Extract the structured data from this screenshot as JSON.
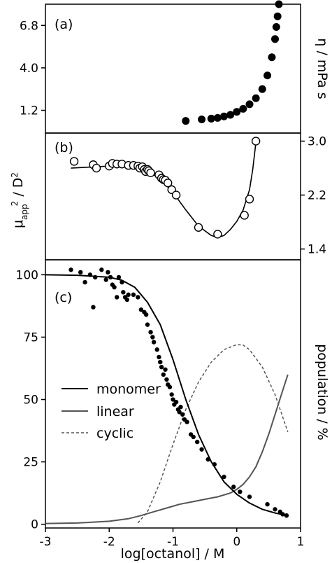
{
  "chart_data": [
    {
      "type": "scatter",
      "panel_label": "(a)",
      "ylabel": "η / mPa s",
      "ylabel_side": "right",
      "x_axis": "shared with panel (c)",
      "xlim": [
        -3,
        1
      ],
      "ylim": [
        -0.3,
        8.2
      ],
      "yticks": [
        1.2,
        4.0,
        6.8
      ],
      "ytick_labels": [
        "1.2",
        "4.0",
        "6.8"
      ],
      "series": [
        {
          "marker": "filled-circle",
          "color": "#000000",
          "x": [
            -0.8,
            -0.55,
            -0.4,
            -0.3,
            -0.2,
            -0.1,
            0.0,
            0.1,
            0.2,
            0.3,
            0.4,
            0.48,
            0.55,
            0.6,
            0.62,
            0.64,
            0.66
          ],
          "y": [
            0.5,
            0.6,
            0.65,
            0.7,
            0.8,
            0.9,
            1.1,
            1.3,
            1.6,
            2.0,
            2.6,
            3.5,
            4.7,
            5.9,
            6.7,
            7.4,
            8.2
          ]
        }
      ]
    },
    {
      "type": "scatter",
      "panel_label": "(b)",
      "ylabel": "μapp² / D²",
      "ylabel_side": "left",
      "yticks_side": "right",
      "xlim": [
        -3,
        1
      ],
      "ylim": [
        1.24,
        3.12
      ],
      "yticks": [
        1.4,
        2.2,
        3.0
      ],
      "ytick_labels": [
        "1.4",
        "2.2",
        "3.0"
      ],
      "series": [
        {
          "marker": "open-circle",
          "x": [
            -2.55,
            -2.25,
            -2.2,
            -2.0,
            -1.95,
            -1.88,
            -1.8,
            -1.7,
            -1.62,
            -1.55,
            -1.52,
            -1.48,
            -1.45,
            -1.43,
            -1.4,
            -1.38,
            -1.35,
            -1.22,
            -1.18,
            -1.15,
            -1.12,
            -1.08,
            -1.02,
            -0.95,
            -0.6,
            -0.3,
            0.12,
            0.2,
            0.3
          ],
          "y": [
            2.7,
            2.65,
            2.6,
            2.63,
            2.67,
            2.66,
            2.66,
            2.64,
            2.64,
            2.63,
            2.6,
            2.62,
            2.58,
            2.55,
            2.58,
            2.56,
            2.53,
            2.5,
            2.45,
            2.43,
            2.42,
            2.38,
            2.28,
            2.2,
            1.72,
            1.62,
            1.9,
            2.14,
            3.0
          ]
        },
        {
          "line": "solid",
          "color": "#000000",
          "x": [
            -2.6,
            -2.4,
            -2.2,
            -2.0,
            -1.8,
            -1.6,
            -1.4,
            -1.2,
            -1.0,
            -0.8,
            -0.6,
            -0.4,
            -0.3,
            -0.2,
            -0.1,
            0.0,
            0.1,
            0.2,
            0.25,
            0.3
          ],
          "y": [
            2.6,
            2.61,
            2.62,
            2.63,
            2.63,
            2.61,
            2.56,
            2.44,
            2.24,
            1.98,
            1.74,
            1.6,
            1.57,
            1.6,
            1.69,
            1.81,
            1.98,
            2.28,
            2.58,
            2.98
          ]
        }
      ]
    },
    {
      "type": "line",
      "panel_label": "(c)",
      "xlabel": "log[octanol] / M",
      "ylabel": "population / %",
      "ylabel_side": "right",
      "xlim": [
        -3,
        1
      ],
      "ylim": [
        -1.5,
        106
      ],
      "xticks": [
        -3,
        -2,
        -1,
        0,
        1
      ],
      "xtick_labels": [
        "-3",
        "-2",
        "-1",
        "0",
        "1"
      ],
      "yticks": [
        0,
        25,
        50,
        75,
        100
      ],
      "ytick_labels": [
        "0",
        "25",
        "50",
        "75",
        "100"
      ],
      "legend": {
        "position": "center-left",
        "entries": [
          "monomer",
          "linear",
          "cyclic"
        ]
      },
      "series": [
        {
          "name": "monomer",
          "line": "solid",
          "color": "#000000",
          "x": [
            -3.0,
            -2.5,
            -2.0,
            -1.8,
            -1.6,
            -1.4,
            -1.2,
            -1.0,
            -0.8,
            -0.6,
            -0.4,
            -0.2,
            0.0,
            0.2,
            0.4,
            0.6,
            0.8
          ],
          "y": [
            100,
            99.8,
            99,
            97.8,
            95,
            89,
            80,
            66,
            50,
            36,
            25,
            17,
            12,
            8.5,
            6,
            4.5,
            3.5
          ]
        },
        {
          "name": "linear",
          "line": "solid",
          "color": "#555555",
          "x": [
            -3.0,
            -2.5,
            -2.0,
            -1.7,
            -1.5,
            -1.3,
            -1.1,
            -0.9,
            -0.7,
            -0.5,
            -0.3,
            -0.1,
            0.0,
            0.1,
            0.2,
            0.3,
            0.4,
            0.5,
            0.6,
            0.7,
            0.8
          ],
          "y": [
            0.3,
            0.5,
            1.2,
            2.2,
            3.5,
            5,
            6.5,
            8,
            9,
            10,
            11,
            12.5,
            14,
            16,
            19,
            23,
            29,
            36,
            44,
            52,
            60
          ]
        },
        {
          "name": "cyclic",
          "line": "dashed",
          "color": "#555555",
          "x": [
            -1.55,
            -1.4,
            -1.2,
            -1.0,
            -0.8,
            -0.6,
            -0.4,
            -0.2,
            0.0,
            0.1,
            0.2,
            0.4,
            0.6,
            0.8
          ],
          "y": [
            0.5,
            5,
            17,
            32,
            46,
            57,
            65,
            70,
            72,
            71.8,
            70,
            63,
            52,
            37
          ]
        },
        {
          "name": "data",
          "marker": "filled-dot",
          "color": "#000000",
          "x": [
            -2.6,
            -2.45,
            -2.38,
            -2.3,
            -2.25,
            -2.22,
            -2.12,
            -2.05,
            -2.02,
            -1.98,
            -1.95,
            -1.92,
            -1.88,
            -1.85,
            -1.8,
            -1.78,
            -1.75,
            -1.72,
            -1.7,
            -1.62,
            -1.55,
            -1.5,
            -1.45,
            -1.42,
            -1.4,
            -1.35,
            -1.32,
            -1.3,
            -1.25,
            -1.22,
            -1.2,
            -1.18,
            -1.15,
            -1.12,
            -1.1,
            -1.08,
            -1.05,
            -1.02,
            -1.0,
            -0.98,
            -0.95,
            -0.92,
            -0.9,
            -0.88,
            -0.85,
            -0.82,
            -0.78,
            -0.72,
            -0.68,
            -0.62,
            -0.55,
            -0.45,
            -0.35,
            -0.2,
            -0.05,
            0.05,
            0.2,
            0.48,
            0.6,
            0.68,
            0.72,
            0.78
          ],
          "y": [
            102,
            101,
            97,
            100,
            87,
            99,
            102,
            98,
            101,
            99,
            96,
            95,
            91,
            99,
            97,
            93,
            91,
            90,
            92,
            92,
            91,
            86,
            85,
            84,
            80,
            77,
            75,
            73,
            70,
            67,
            65,
            63,
            60,
            62,
            58,
            56,
            55,
            52,
            50,
            48,
            49,
            46,
            45,
            47,
            44,
            42,
            41,
            36,
            35,
            33,
            30,
            26,
            24,
            19,
            15,
            13,
            11,
            8,
            6,
            5,
            4,
            3.5
          ]
        }
      ]
    }
  ]
}
